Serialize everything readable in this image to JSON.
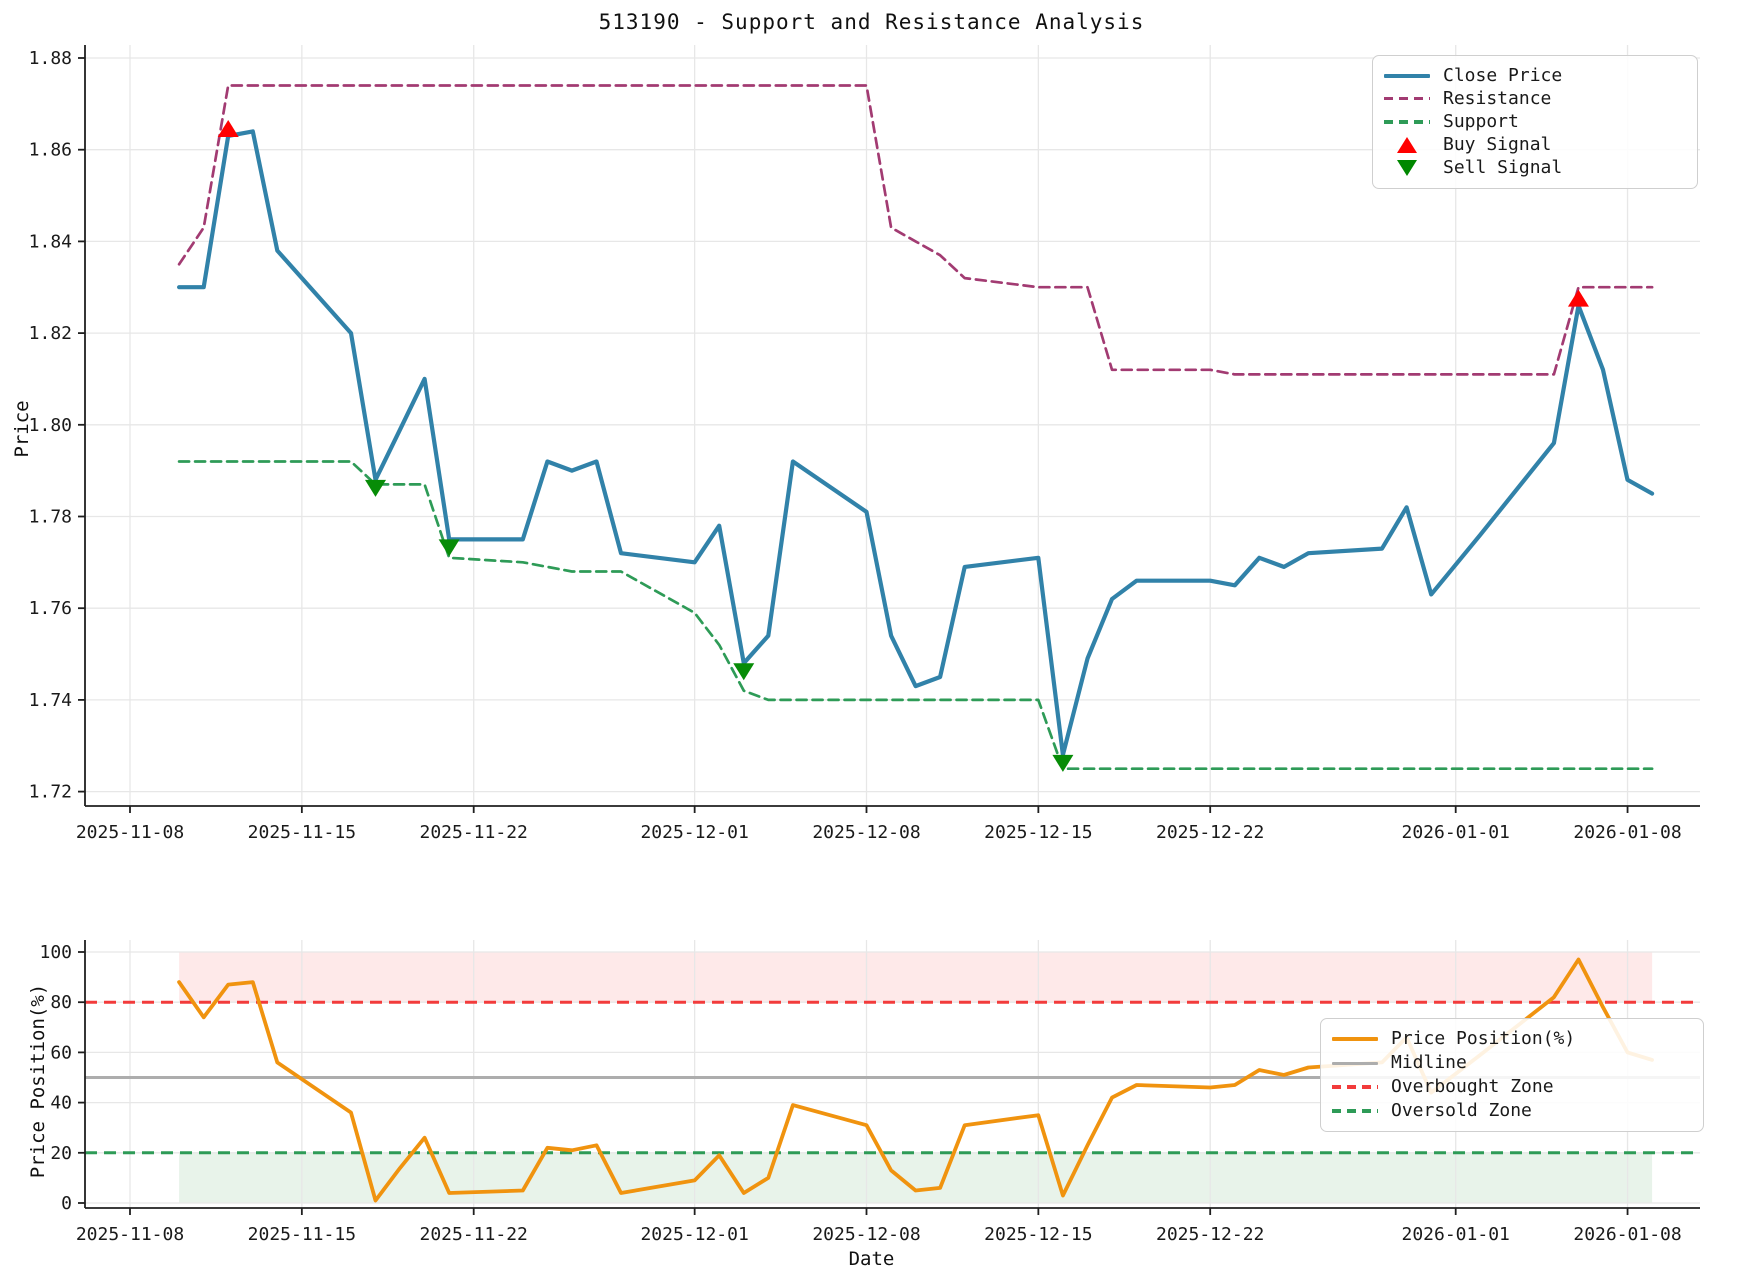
{
  "title": "513190 - Support and Resistance Analysis",
  "axes": {
    "price_label": "Price",
    "position_label": "Price Position(%)",
    "date_label": "Date"
  },
  "colors": {
    "close": "#3182A9",
    "resistance": "#A23B72",
    "support": "#2E9B57",
    "buy": "#FF0000",
    "sell": "#078C07",
    "position": "#F0930F",
    "midline": "#ADADAD",
    "overbought": "#F23B3B",
    "oversold": "#2E9B57",
    "overbought_zone": "rgba(250,120,120,0.16)",
    "oversold_zone": "rgba(80,160,90,0.13)",
    "grid": "#e7e7e7",
    "spine": "#1f1f1f"
  },
  "top_legend": {
    "items": [
      {
        "label": "Close Price"
      },
      {
        "label": "Resistance"
      },
      {
        "label": "Support"
      },
      {
        "label": "Buy Signal"
      },
      {
        "label": "Sell Signal"
      }
    ]
  },
  "bottom_legend": {
    "items": [
      {
        "label": "Price Position(%)"
      },
      {
        "label": "Midline"
      },
      {
        "label": "Overbought Zone"
      },
      {
        "label": "Oversold Zone"
      }
    ]
  },
  "chart_data": [
    {
      "type": "line",
      "title": "513190 - Support and Resistance Analysis",
      "ylabel": "Price",
      "ylim": [
        1.717,
        1.883
      ],
      "yticks": [
        1.72,
        1.74,
        1.76,
        1.78,
        1.8,
        1.82,
        1.84,
        1.86,
        1.88
      ],
      "xticks": [
        "2025-11-08",
        "2025-11-15",
        "2025-11-22",
        "2025-12-01",
        "2025-12-08",
        "2025-12-15",
        "2025-12-22",
        "2026-01-01",
        "2026-01-08"
      ],
      "grid": true,
      "legend_position": "upper right",
      "x": [
        "2025-11-10",
        "2025-11-11",
        "2025-11-12",
        "2025-11-13",
        "2025-11-14",
        "2025-11-17",
        "2025-11-18",
        "2025-11-19",
        "2025-11-20",
        "2025-11-21",
        "2025-11-24",
        "2025-11-25",
        "2025-11-26",
        "2025-11-27",
        "2025-11-28",
        "2025-12-01",
        "2025-12-02",
        "2025-12-03",
        "2025-12-04",
        "2025-12-05",
        "2025-12-08",
        "2025-12-09",
        "2025-12-10",
        "2025-12-11",
        "2025-12-12",
        "2025-12-15",
        "2025-12-16",
        "2025-12-17",
        "2025-12-18",
        "2025-12-19",
        "2025-12-22",
        "2025-12-23",
        "2025-12-24",
        "2025-12-25",
        "2025-12-26",
        "2025-12-29",
        "2025-12-30",
        "2025-12-31",
        "2026-01-02",
        "2026-01-05",
        "2026-01-06",
        "2026-01-07",
        "2026-01-08",
        "2026-01-09"
      ],
      "series": [
        {
          "name": "Close Price",
          "style": "solid",
          "values": [
            1.83,
            1.83,
            1.863,
            1.864,
            1.838,
            1.82,
            1.788,
            1.799,
            1.81,
            1.775,
            1.775,
            1.792,
            1.79,
            1.792,
            1.772,
            1.77,
            1.778,
            1.748,
            1.754,
            1.792,
            1.781,
            1.754,
            1.743,
            1.745,
            1.769,
            1.771,
            1.728,
            1.749,
            1.762,
            1.766,
            1.766,
            1.765,
            1.771,
            1.769,
            1.772,
            1.773,
            1.782,
            1.763,
            1.776,
            1.796,
            1.826,
            1.812,
            1.788,
            1.785
          ]
        },
        {
          "name": "Resistance",
          "style": "dashed",
          "values": [
            1.835,
            1.843,
            1.874,
            1.874,
            1.874,
            1.874,
            1.874,
            1.874,
            1.874,
            1.874,
            1.874,
            1.874,
            1.874,
            1.874,
            1.874,
            1.874,
            1.874,
            1.874,
            1.874,
            1.874,
            1.874,
            1.843,
            1.84,
            1.837,
            1.832,
            1.83,
            1.83,
            1.83,
            1.812,
            1.812,
            1.812,
            1.811,
            1.811,
            1.811,
            1.811,
            1.811,
            1.811,
            1.811,
            1.811,
            1.811,
            1.83,
            1.83,
            1.83,
            1.83
          ]
        },
        {
          "name": "Support",
          "style": "dashed",
          "values": [
            1.792,
            1.792,
            1.792,
            1.792,
            1.792,
            1.792,
            1.787,
            1.787,
            1.787,
            1.771,
            1.77,
            1.769,
            1.768,
            1.768,
            1.768,
            1.759,
            1.752,
            1.742,
            1.74,
            1.74,
            1.74,
            1.74,
            1.74,
            1.74,
            1.74,
            1.74,
            1.725,
            1.725,
            1.725,
            1.725,
            1.725,
            1.725,
            1.725,
            1.725,
            1.725,
            1.725,
            1.725,
            1.725,
            1.725,
            1.725,
            1.725,
            1.725,
            1.725,
            1.725
          ]
        }
      ],
      "signals": {
        "buy": [
          {
            "date": "2025-11-12",
            "price": 1.863
          },
          {
            "date": "2026-01-06",
            "price": 1.826
          }
        ],
        "sell": [
          {
            "date": "2025-11-18",
            "price": 1.788
          },
          {
            "date": "2025-11-21",
            "price": 1.775
          },
          {
            "date": "2025-12-03",
            "price": 1.748
          },
          {
            "date": "2025-12-16",
            "price": 1.728
          }
        ]
      }
    },
    {
      "type": "line",
      "ylabel": "Price Position(%)",
      "xlabel": "Date",
      "ylim": [
        0,
        100
      ],
      "yticks": [
        0,
        20,
        40,
        60,
        80,
        100
      ],
      "xticks": [
        "2025-11-08",
        "2025-11-15",
        "2025-11-22",
        "2025-12-01",
        "2025-12-08",
        "2025-12-15",
        "2025-12-22",
        "2026-01-01",
        "2026-01-08"
      ],
      "grid": true,
      "legend_position": "right",
      "x": [
        "2025-11-10",
        "2025-11-11",
        "2025-11-12",
        "2025-11-13",
        "2025-11-14",
        "2025-11-17",
        "2025-11-18",
        "2025-11-19",
        "2025-11-20",
        "2025-11-21",
        "2025-11-24",
        "2025-11-25",
        "2025-11-26",
        "2025-11-27",
        "2025-11-28",
        "2025-12-01",
        "2025-12-02",
        "2025-12-03",
        "2025-12-04",
        "2025-12-05",
        "2025-12-08",
        "2025-12-09",
        "2025-12-10",
        "2025-12-11",
        "2025-12-12",
        "2025-12-15",
        "2025-12-16",
        "2025-12-17",
        "2025-12-18",
        "2025-12-19",
        "2025-12-22",
        "2025-12-23",
        "2025-12-24",
        "2025-12-25",
        "2025-12-26",
        "2025-12-29",
        "2025-12-30",
        "2025-12-31",
        "2026-01-02",
        "2026-01-05",
        "2026-01-06",
        "2026-01-07",
        "2026-01-08",
        "2026-01-09"
      ],
      "series": [
        {
          "name": "Price Position(%)",
          "style": "solid",
          "values": [
            88,
            74,
            87,
            88,
            56,
            36,
            1,
            14,
            26,
            4,
            5,
            22,
            21,
            23,
            4,
            9,
            19,
            4,
            10,
            39,
            31,
            13,
            5,
            6,
            31,
            35,
            3,
            23,
            42,
            47,
            46,
            47,
            53,
            51,
            54,
            56,
            66,
            44,
            59,
            82,
            97,
            78,
            60,
            57
          ]
        }
      ],
      "reference_lines": {
        "midline": 50,
        "overbought": 80,
        "oversold": 20
      },
      "zones": {
        "overbought": [
          80,
          100
        ],
        "oversold": [
          0,
          20
        ]
      }
    }
  ]
}
